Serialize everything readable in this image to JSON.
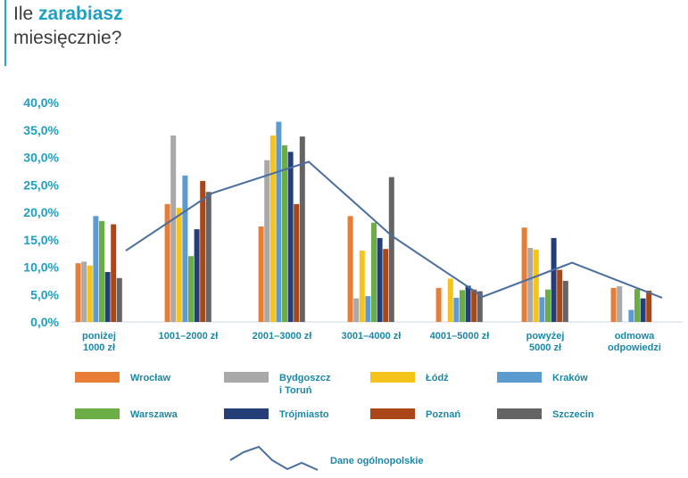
{
  "title": {
    "part1": "Ile ",
    "part2_bold": "zarabiasz",
    "line2": "miesięcznie?"
  },
  "colors": {
    "accent": "#1ba1c4",
    "axis_text": "#1ba1c4",
    "line": "#4a6ea0"
  },
  "chart_data": {
    "type": "bar",
    "categories": [
      [
        "poniżej",
        "1000 zł"
      ],
      [
        "1001–2000 zł"
      ],
      [
        "2001–3000 zł"
      ],
      [
        "3001–4000 zł"
      ],
      [
        "4001–5000 zł"
      ],
      [
        "powyżej",
        "5000 zł"
      ],
      [
        "odmowa",
        "odpowiedzi"
      ]
    ],
    "ylim": [
      0,
      40
    ],
    "yticks": [
      "0,0%",
      "5,0%",
      "10,0%",
      "15,0%",
      "20,0%",
      "25,0%",
      "30,0%",
      "35,0%",
      "40,0%"
    ],
    "series": [
      {
        "name": "Wrocław",
        "color": "#e87d35",
        "values": [
          10.7,
          21.5,
          17.4,
          19.3,
          6.2,
          17.2,
          6.2
        ]
      },
      {
        "name": "Bydgoszcz i Toruń",
        "label_lines": [
          "Bydgoszcz",
          "i Toruń"
        ],
        "color": "#a9a9a9",
        "values": [
          11.0,
          34.0,
          29.5,
          4.3,
          0,
          13.5,
          6.5
        ]
      },
      {
        "name": "Łódź",
        "color": "#f5c31c",
        "values": [
          10.3,
          20.8,
          34.0,
          13.0,
          7.9,
          13.2,
          0
        ]
      },
      {
        "name": "Kraków",
        "color": "#5b9bd0",
        "values": [
          19.3,
          26.7,
          36.5,
          4.7,
          4.4,
          4.5,
          2.2
        ]
      },
      {
        "name": "Warszawa",
        "color": "#6cae46",
        "values": [
          18.4,
          12.0,
          32.2,
          18.1,
          5.8,
          5.9,
          6.0
        ]
      },
      {
        "name": "Trójmiasto",
        "color": "#243f78",
        "values": [
          9.1,
          16.9,
          31.0,
          15.3,
          6.6,
          15.3,
          4.3
        ]
      },
      {
        "name": "Poznań",
        "color": "#a94718",
        "values": [
          17.8,
          25.7,
          21.5,
          13.3,
          5.9,
          9.5,
          5.7
        ]
      },
      {
        "name": "Szczecin",
        "color": "#646464",
        "values": [
          8.0,
          23.7,
          33.8,
          26.4,
          5.6,
          7.5,
          0
        ]
      }
    ],
    "line_series": {
      "name": "Dane ogólnopolskie",
      "color": "#4a6ea0",
      "values": [
        13.0,
        23.5,
        29.2,
        15.7,
        4.6,
        10.8,
        4.4
      ]
    },
    "grid": false,
    "legend_position": "bottom"
  }
}
